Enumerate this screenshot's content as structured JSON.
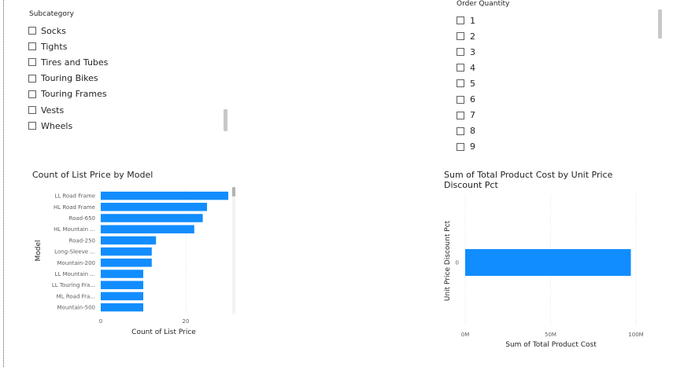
{
  "slicers": {
    "subcategory": {
      "title": "Subcategory",
      "items": [
        {
          "label": "Socks",
          "checked": false
        },
        {
          "label": "Tights",
          "checked": false
        },
        {
          "label": "Tires and Tubes",
          "checked": false
        },
        {
          "label": "Touring Bikes",
          "checked": false
        },
        {
          "label": "Touring Frames",
          "checked": false
        },
        {
          "label": "Vests",
          "checked": false
        },
        {
          "label": "Wheels",
          "checked": false
        }
      ]
    },
    "order_quantity": {
      "title": "Order Quantity",
      "items": [
        {
          "label": "1",
          "checked": false
        },
        {
          "label": "2",
          "checked": false
        },
        {
          "label": "3",
          "checked": false
        },
        {
          "label": "4",
          "checked": false
        },
        {
          "label": "5",
          "checked": false
        },
        {
          "label": "6",
          "checked": false
        },
        {
          "label": "7",
          "checked": false
        },
        {
          "label": "8",
          "checked": false
        },
        {
          "label": "9",
          "checked": false
        }
      ]
    }
  },
  "chart_data": [
    {
      "type": "bar",
      "orientation": "horizontal",
      "title": "Count of List Price by Model",
      "xlabel": "Count of List Price",
      "ylabel": "Model",
      "categories": [
        "LL Road Frame",
        "HL Road Frame",
        "Road-650",
        "HL Mountain ...",
        "Road-250",
        "Long-Sleeve ...",
        "Mountain-200",
        "LL Mountain ...",
        "LL Touring Fra...",
        "ML Road Fra...",
        "Mountain-500"
      ],
      "values": [
        30,
        25,
        24,
        22,
        13,
        12,
        12,
        10,
        10,
        10,
        10
      ],
      "xlim": [
        0,
        30
      ],
      "xticks": [
        {
          "value": 0,
          "label": "0"
        },
        {
          "value": 20,
          "label": "20"
        }
      ],
      "bar_color": "#118dff",
      "grid": true
    },
    {
      "type": "bar",
      "orientation": "horizontal",
      "title": "Sum of Total Product Cost by Unit Price Discount Pct",
      "xlabel": "Sum of Total Product Cost",
      "ylabel": "Unit Price Discount Pct",
      "categories": [
        "0"
      ],
      "values": [
        97000000
      ],
      "xlim": [
        0,
        100000000
      ],
      "xticks": [
        {
          "value": 0,
          "label": "0M"
        },
        {
          "value": 50000000,
          "label": "50M"
        },
        {
          "value": 100000000,
          "label": "100M"
        }
      ],
      "bar_color": "#118dff",
      "grid": true
    }
  ]
}
